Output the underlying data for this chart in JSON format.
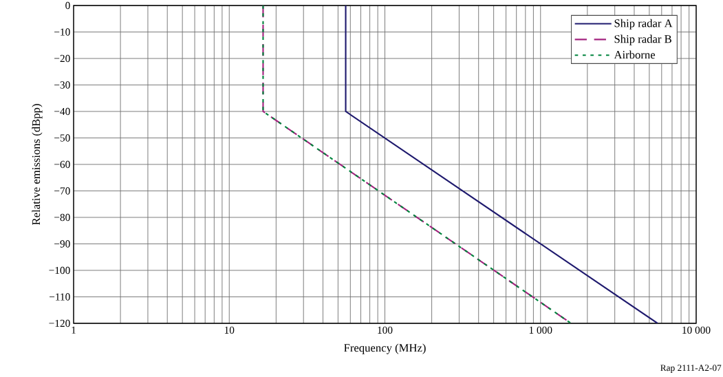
{
  "chart_data": {
    "type": "line",
    "xlabel": "Frequency (MHz)",
    "ylabel": "Relative emissions (dBpp)",
    "annotations": [
      "Rap 2111-A2-07"
    ],
    "log": "x",
    "grid": true,
    "legend": "top right",
    "xlim": [
      1,
      10000
    ],
    "ylim": [
      -120,
      0
    ],
    "xticks": [
      1,
      10,
      100,
      {
        "value": 1000,
        "label": "1 000"
      },
      {
        "value": 10000,
        "label": "10 000"
      }
    ],
    "yticks": [
      0,
      {
        "value": -10,
        "label": "−10"
      },
      {
        "value": -20,
        "label": "−20"
      },
      {
        "value": -30,
        "label": "−30"
      },
      {
        "value": -40,
        "label": "−40"
      },
      {
        "value": -50,
        "label": "−50"
      },
      {
        "value": -60,
        "label": "−60"
      },
      {
        "value": -70,
        "label": "−70"
      },
      {
        "value": -80,
        "label": "−80"
      },
      {
        "value": -90,
        "label": "−90"
      },
      {
        "value": -100,
        "label": "−100"
      },
      {
        "value": -110,
        "label": "−110"
      },
      {
        "value": -120,
        "label": "−120"
      }
    ],
    "series": [
      {
        "name": "Ship radar A",
        "color": "#1f1a6e",
        "line_style": "solid",
        "x": [
          56,
          56,
          5650
        ],
        "values": [
          0,
          -40,
          -120
        ]
      },
      {
        "name": "Ship radar B",
        "color": "#a3237f",
        "line_style": "dashed",
        "x": [
          16.5,
          16.5,
          1570
        ],
        "values": [
          0,
          -40,
          -120
        ]
      },
      {
        "name": "Airborne",
        "color": "#00843d",
        "line_style": "dotted",
        "x": [
          16.5,
          16.5,
          1570
        ],
        "values": [
          0,
          -40,
          -120
        ]
      }
    ]
  }
}
